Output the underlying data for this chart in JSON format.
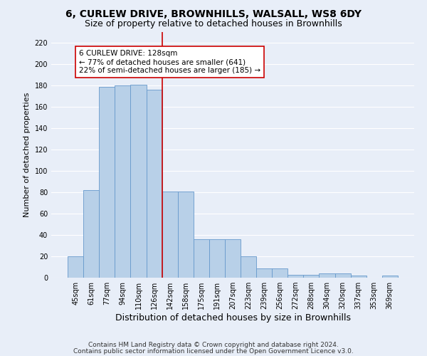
{
  "title_line1": "6, CURLEW DRIVE, BROWNHILLS, WALSALL, WS8 6DY",
  "title_line2": "Size of property relative to detached houses in Brownhills",
  "xlabel": "Distribution of detached houses by size in Brownhills",
  "ylabel": "Number of detached properties",
  "categories": [
    "45sqm",
    "61sqm",
    "77sqm",
    "94sqm",
    "110sqm",
    "126sqm",
    "142sqm",
    "158sqm",
    "175sqm",
    "191sqm",
    "207sqm",
    "223sqm",
    "239sqm",
    "256sqm",
    "272sqm",
    "288sqm",
    "304sqm",
    "320sqm",
    "337sqm",
    "353sqm",
    "369sqm"
  ],
  "bar_values": [
    20,
    82,
    179,
    180,
    181,
    176,
    81,
    81,
    36,
    36,
    36,
    20,
    9,
    9,
    3,
    3,
    4,
    4,
    2,
    0,
    2
  ],
  "bar_color": "#b8d0e8",
  "bar_edge_color": "#6699cc",
  "vline_color": "#cc0000",
  "vline_x_index": 5,
  "annotation_text": "6 CURLEW DRIVE: 128sqm\n← 77% of detached houses are smaller (641)\n22% of semi-detached houses are larger (185) →",
  "annotation_box_facecolor": "#ffffff",
  "annotation_box_edgecolor": "#cc0000",
  "ylim": [
    0,
    230
  ],
  "yticks": [
    0,
    20,
    40,
    60,
    80,
    100,
    120,
    140,
    160,
    180,
    200,
    220
  ],
  "footer_line1": "Contains HM Land Registry data © Crown copyright and database right 2024.",
  "footer_line2": "Contains public sector information licensed under the Open Government Licence v3.0.",
  "fig_bg_color": "#e8eef8",
  "ax_bg_color": "#e8eef8",
  "grid_color": "#ffffff",
  "title_fontsize": 10,
  "subtitle_fontsize": 9,
  "ylabel_fontsize": 8,
  "xlabel_fontsize": 9,
  "tick_fontsize": 7,
  "annotation_fontsize": 7.5,
  "footer_fontsize": 6.5
}
